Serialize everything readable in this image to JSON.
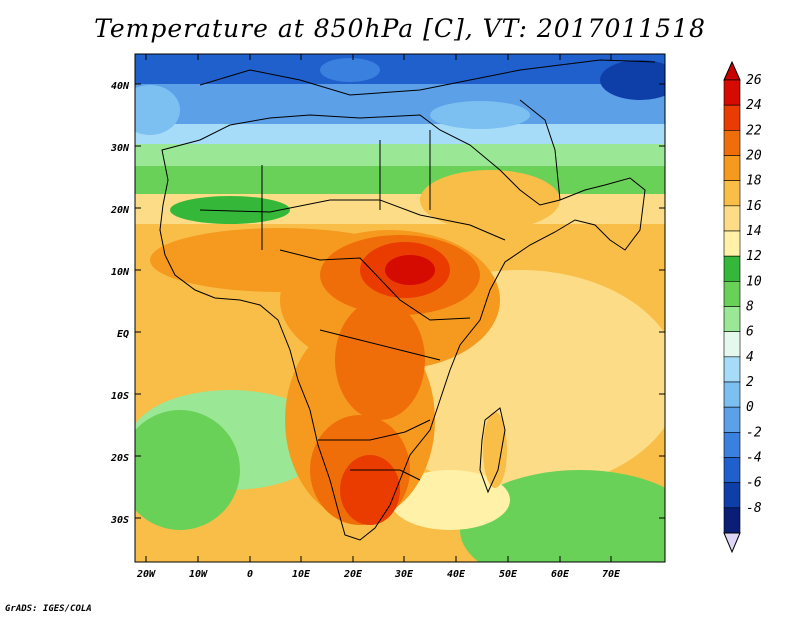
{
  "title": "Temperature at 850hPa [C], VT: 2017011518",
  "credit": "GrADS: IGES/COLA",
  "map": {
    "region": "Africa, Middle East and western Indian Ocean",
    "variable": "Temperature at 850 hPa",
    "units": "C",
    "lon_range": [
      -23,
      80
    ],
    "lat_range": [
      -37,
      46
    ],
    "lat_tick_labels": [
      "40N",
      "30N",
      "20N",
      "10N",
      "EQ",
      "10S",
      "20S",
      "30S"
    ],
    "lon_tick_labels": [
      "20W",
      "10W",
      "0",
      "10E",
      "20E",
      "30E",
      "40E",
      "50E",
      "60E",
      "70E"
    ]
  },
  "colorbar": {
    "levels": [
      "26",
      "24",
      "22",
      "20",
      "18",
      "16",
      "14",
      "12",
      "10",
      "8",
      "6",
      "4",
      "2",
      "0",
      "-2",
      "-4",
      "-6",
      "-8"
    ],
    "colors": [
      "#d50a00",
      "#ea3c00",
      "#f06e0a",
      "#f59a1e",
      "#f8be48",
      "#fcdc86",
      "#fff2a8",
      "#35b83a",
      "#6ad158",
      "#9ae896",
      "#e4f8ee",
      "#a6dcf8",
      "#7cc0f2",
      "#5ca0e8",
      "#3a80de",
      "#2060cc",
      "#0e3ea8",
      "#0a1e78"
    ],
    "top_arrow_color": "#c80000",
    "bottom_arrow_color": "#ddd6f6"
  }
}
